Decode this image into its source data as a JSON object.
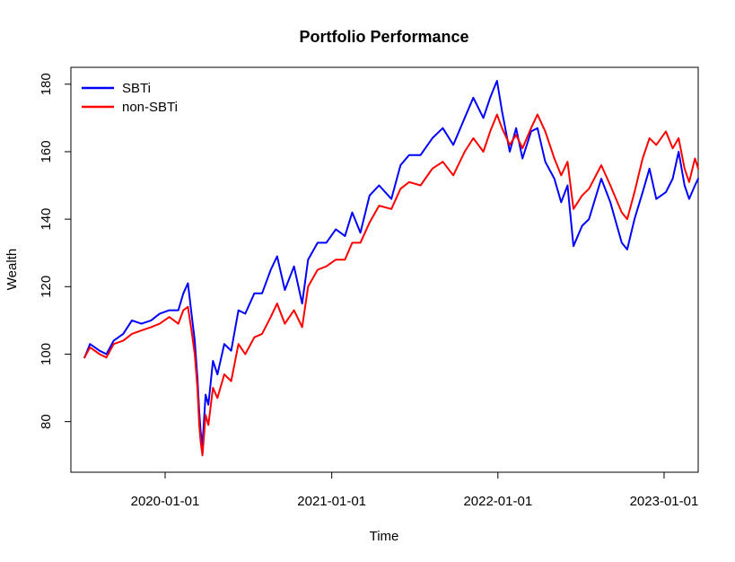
{
  "chart_data": {
    "type": "line",
    "title": "Portfolio Performance",
    "xlabel": "Time",
    "ylabel": "Wealth",
    "x_ticks": [
      "2020-01-01",
      "2021-01-01",
      "2022-01-01",
      "2023-01-01"
    ],
    "y_ticks": [
      80,
      100,
      120,
      140,
      160,
      180
    ],
    "xlim": [
      "2019-06-08",
      "2023-03-17"
    ],
    "ylim": [
      65,
      185
    ],
    "grid": false,
    "legend_position": "top-left",
    "series": [
      {
        "name": "SBTi",
        "color": "#0000ff",
        "points": [
          [
            "2019-07-08",
            99
          ],
          [
            "2019-07-20",
            103
          ],
          [
            "2019-08-10",
            101
          ],
          [
            "2019-08-25",
            100
          ],
          [
            "2019-09-10",
            104
          ],
          [
            "2019-10-01",
            106
          ],
          [
            "2019-10-20",
            110
          ],
          [
            "2019-11-10",
            109
          ],
          [
            "2019-12-01",
            110
          ],
          [
            "2019-12-20",
            112
          ],
          [
            "2020-01-10",
            113
          ],
          [
            "2020-01-30",
            113
          ],
          [
            "2020-02-10",
            118
          ],
          [
            "2020-02-20",
            121
          ],
          [
            "2020-02-28",
            112
          ],
          [
            "2020-03-06",
            104
          ],
          [
            "2020-03-12",
            93
          ],
          [
            "2020-03-16",
            83
          ],
          [
            "2020-03-19",
            77
          ],
          [
            "2020-03-23",
            73
          ],
          [
            "2020-03-30",
            88
          ],
          [
            "2020-04-05",
            85
          ],
          [
            "2020-04-15",
            98
          ],
          [
            "2020-04-25",
            94
          ],
          [
            "2020-05-10",
            103
          ],
          [
            "2020-05-25",
            101
          ],
          [
            "2020-06-10",
            113
          ],
          [
            "2020-06-25",
            112
          ],
          [
            "2020-07-15",
            118
          ],
          [
            "2020-08-01",
            118
          ],
          [
            "2020-08-20",
            125
          ],
          [
            "2020-09-03",
            129
          ],
          [
            "2020-09-20",
            119
          ],
          [
            "2020-10-10",
            126
          ],
          [
            "2020-10-28",
            115
          ],
          [
            "2020-11-10",
            128
          ],
          [
            "2020-12-01",
            133
          ],
          [
            "2020-12-20",
            133
          ],
          [
            "2021-01-10",
            137
          ],
          [
            "2021-01-30",
            135
          ],
          [
            "2021-02-15",
            142
          ],
          [
            "2021-03-05",
            136
          ],
          [
            "2021-03-25",
            147
          ],
          [
            "2021-04-15",
            150
          ],
          [
            "2021-05-12",
            146
          ],
          [
            "2021-06-01",
            156
          ],
          [
            "2021-06-20",
            159
          ],
          [
            "2021-07-15",
            159
          ],
          [
            "2021-08-10",
            164
          ],
          [
            "2021-09-02",
            167
          ],
          [
            "2021-09-25",
            162
          ],
          [
            "2021-10-20",
            170
          ],
          [
            "2021-11-08",
            176
          ],
          [
            "2021-11-30",
            170
          ],
          [
            "2021-12-15",
            176
          ],
          [
            "2021-12-30",
            181
          ],
          [
            "2022-01-10",
            172
          ],
          [
            "2022-01-27",
            160
          ],
          [
            "2022-02-10",
            167
          ],
          [
            "2022-02-24",
            158
          ],
          [
            "2022-03-15",
            166
          ],
          [
            "2022-03-29",
            167
          ],
          [
            "2022-04-15",
            157
          ],
          [
            "2022-05-05",
            152
          ],
          [
            "2022-05-20",
            145
          ],
          [
            "2022-06-03",
            150
          ],
          [
            "2022-06-16",
            132
          ],
          [
            "2022-07-05",
            138
          ],
          [
            "2022-07-20",
            140
          ],
          [
            "2022-08-16",
            152
          ],
          [
            "2022-09-05",
            145
          ],
          [
            "2022-09-30",
            133
          ],
          [
            "2022-10-12",
            131
          ],
          [
            "2022-10-28",
            140
          ],
          [
            "2022-11-15",
            148
          ],
          [
            "2022-11-30",
            155
          ],
          [
            "2022-12-15",
            146
          ],
          [
            "2023-01-05",
            148
          ],
          [
            "2023-01-20",
            152
          ],
          [
            "2023-02-02",
            160
          ],
          [
            "2023-02-15",
            150
          ],
          [
            "2023-02-25",
            146
          ],
          [
            "2023-03-10",
            150
          ],
          [
            "2023-03-17",
            152
          ]
        ]
      },
      {
        "name": "non-SBTi",
        "color": "#ff0000",
        "points": [
          [
            "2019-07-08",
            99
          ],
          [
            "2019-07-20",
            102
          ],
          [
            "2019-08-10",
            100
          ],
          [
            "2019-08-25",
            99
          ],
          [
            "2019-09-10",
            103
          ],
          [
            "2019-10-01",
            104
          ],
          [
            "2019-10-20",
            106
          ],
          [
            "2019-11-10",
            107
          ],
          [
            "2019-12-01",
            108
          ],
          [
            "2019-12-20",
            109
          ],
          [
            "2020-01-10",
            111
          ],
          [
            "2020-01-30",
            109
          ],
          [
            "2020-02-10",
            113
          ],
          [
            "2020-02-20",
            114
          ],
          [
            "2020-02-28",
            107
          ],
          [
            "2020-03-06",
            100
          ],
          [
            "2020-03-12",
            90
          ],
          [
            "2020-03-16",
            79
          ],
          [
            "2020-03-19",
            74
          ],
          [
            "2020-03-23",
            70
          ],
          [
            "2020-03-30",
            82
          ],
          [
            "2020-04-05",
            79
          ],
          [
            "2020-04-15",
            90
          ],
          [
            "2020-04-25",
            87
          ],
          [
            "2020-05-10",
            94
          ],
          [
            "2020-05-25",
            92
          ],
          [
            "2020-06-10",
            103
          ],
          [
            "2020-06-25",
            100
          ],
          [
            "2020-07-15",
            105
          ],
          [
            "2020-08-01",
            106
          ],
          [
            "2020-08-20",
            111
          ],
          [
            "2020-09-03",
            115
          ],
          [
            "2020-09-20",
            109
          ],
          [
            "2020-10-10",
            113
          ],
          [
            "2020-10-28",
            108
          ],
          [
            "2020-11-10",
            120
          ],
          [
            "2020-12-01",
            125
          ],
          [
            "2020-12-20",
            126
          ],
          [
            "2021-01-10",
            128
          ],
          [
            "2021-01-30",
            128
          ],
          [
            "2021-02-15",
            133
          ],
          [
            "2021-03-05",
            133
          ],
          [
            "2021-03-25",
            139
          ],
          [
            "2021-04-15",
            144
          ],
          [
            "2021-05-12",
            143
          ],
          [
            "2021-06-01",
            149
          ],
          [
            "2021-06-20",
            151
          ],
          [
            "2021-07-15",
            150
          ],
          [
            "2021-08-10",
            155
          ],
          [
            "2021-09-02",
            157
          ],
          [
            "2021-09-25",
            153
          ],
          [
            "2021-10-20",
            160
          ],
          [
            "2021-11-08",
            164
          ],
          [
            "2021-11-30",
            160
          ],
          [
            "2021-12-15",
            166
          ],
          [
            "2021-12-30",
            171
          ],
          [
            "2022-01-10",
            167
          ],
          [
            "2022-01-27",
            162
          ],
          [
            "2022-02-10",
            165
          ],
          [
            "2022-02-24",
            161
          ],
          [
            "2022-03-15",
            167
          ],
          [
            "2022-03-29",
            171
          ],
          [
            "2022-04-15",
            166
          ],
          [
            "2022-05-05",
            158
          ],
          [
            "2022-05-20",
            153
          ],
          [
            "2022-06-03",
            157
          ],
          [
            "2022-06-16",
            143
          ],
          [
            "2022-07-05",
            147
          ],
          [
            "2022-07-20",
            149
          ],
          [
            "2022-08-16",
            156
          ],
          [
            "2022-09-05",
            150
          ],
          [
            "2022-09-30",
            142
          ],
          [
            "2022-10-12",
            140
          ],
          [
            "2022-10-28",
            148
          ],
          [
            "2022-11-15",
            158
          ],
          [
            "2022-11-30",
            164
          ],
          [
            "2022-12-15",
            162
          ],
          [
            "2023-01-05",
            166
          ],
          [
            "2023-01-20",
            161
          ],
          [
            "2023-02-02",
            164
          ],
          [
            "2023-02-15",
            155
          ],
          [
            "2023-02-25",
            151
          ],
          [
            "2023-03-10",
            158
          ],
          [
            "2023-03-17",
            155
          ]
        ]
      }
    ]
  }
}
